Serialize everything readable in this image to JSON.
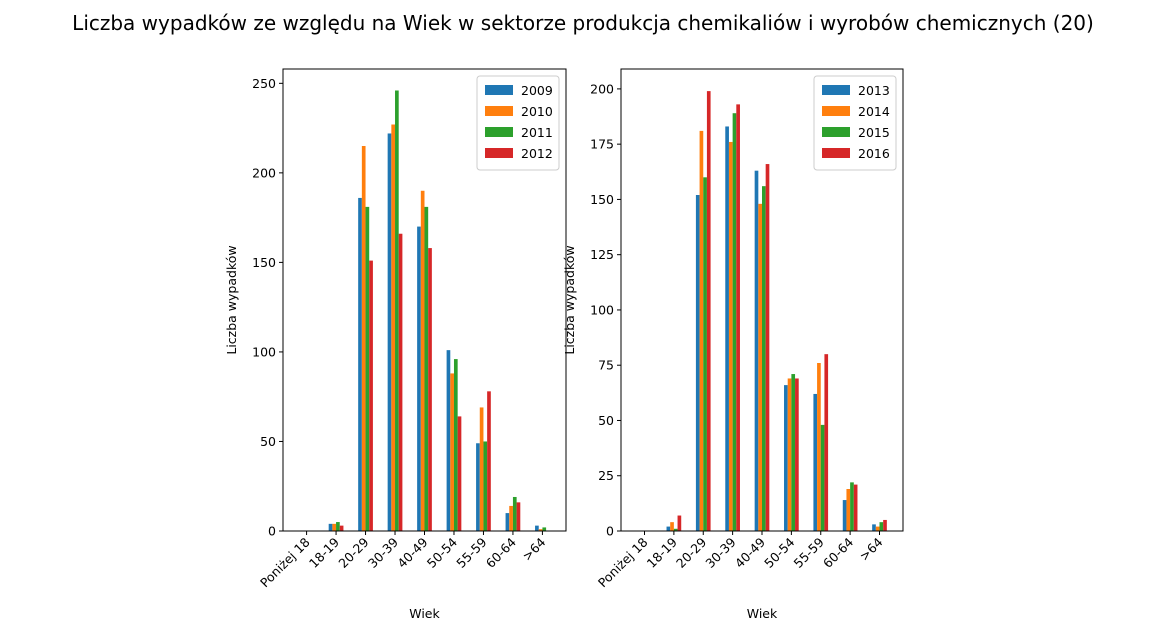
{
  "figure": {
    "suptitle": "Liczba wypadków ze względu na Wiek w sektorze produkcja chemikaliów i wyrobów  chemicznych (20)"
  },
  "chart_data": [
    {
      "type": "bar",
      "categories": [
        "Poniżej 18",
        "18-19",
        "20-29",
        "30-39",
        "40-49",
        "50-54",
        "55-59",
        "60-64",
        ">64"
      ],
      "xlabel": "Wiek",
      "ylabel": "Liczba wypadków",
      "ylim": [
        0,
        258
      ],
      "yticks": [
        0,
        50,
        100,
        150,
        200,
        250
      ],
      "grid": false,
      "legend_position": "top-right",
      "series": [
        {
          "name": "2009",
          "color": "#1f77b4",
          "values": [
            0,
            4,
            186,
            222,
            170,
            101,
            49,
            10,
            3
          ]
        },
        {
          "name": "2010",
          "color": "#ff7f0e",
          "values": [
            0,
            4,
            215,
            227,
            190,
            88,
            69,
            14,
            1
          ]
        },
        {
          "name": "2011",
          "color": "#2ca02c",
          "values": [
            0,
            5,
            181,
            246,
            181,
            96,
            50,
            19,
            2
          ]
        },
        {
          "name": "2012",
          "color": "#d62728",
          "values": [
            0,
            3,
            151,
            166,
            158,
            64,
            78,
            16,
            0
          ]
        }
      ]
    },
    {
      "type": "bar",
      "categories": [
        "Poniżej 18",
        "18-19",
        "20-29",
        "30-39",
        "40-49",
        "50-54",
        "55-59",
        "60-64",
        ">64"
      ],
      "xlabel": "Wiek",
      "ylabel": "Liczba wypadków",
      "ylim": [
        0,
        209
      ],
      "yticks": [
        0,
        25,
        50,
        75,
        100,
        125,
        150,
        175,
        200
      ],
      "grid": false,
      "legend_position": "top-right",
      "series": [
        {
          "name": "2013",
          "color": "#1f77b4",
          "values": [
            0,
            2,
            152,
            183,
            163,
            66,
            62,
            14,
            3
          ]
        },
        {
          "name": "2014",
          "color": "#ff7f0e",
          "values": [
            0,
            4,
            181,
            176,
            148,
            69,
            76,
            19,
            2
          ]
        },
        {
          "name": "2015",
          "color": "#2ca02c",
          "values": [
            0,
            1,
            160,
            189,
            156,
            71,
            48,
            22,
            4
          ]
        },
        {
          "name": "2016",
          "color": "#d62728",
          "values": [
            0,
            7,
            199,
            193,
            166,
            69,
            80,
            21,
            5
          ]
        }
      ]
    }
  ]
}
